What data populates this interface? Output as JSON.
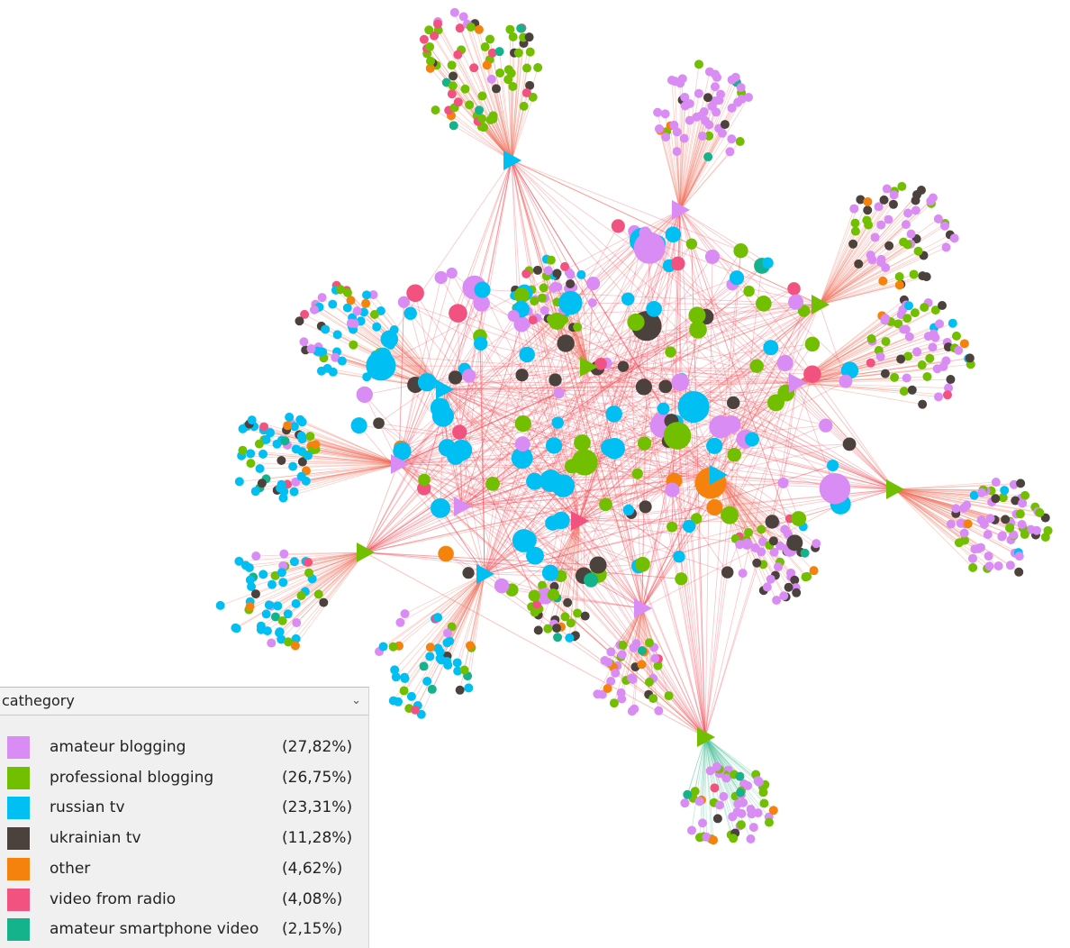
{
  "legend": {
    "title": "cathegory",
    "items": [
      {
        "label": "amateur blogging",
        "share": "(27,82%)",
        "color": "#d98cf3"
      },
      {
        "label": "professional blogging",
        "share": "(26,75%)",
        "color": "#72bf00"
      },
      {
        "label": "russian tv",
        "share": "(23,31%)",
        "color": "#00bff3"
      },
      {
        "label": "ukrainian tv",
        "share": "(11,28%)",
        "color": "#4b413d"
      },
      {
        "label": "other",
        "share": "(4,62%)",
        "color": "#f5820d"
      },
      {
        "label": "video from radio",
        "share": "(4,08%)",
        "color": "#f2527f"
      },
      {
        "label": "amateur smartphone video",
        "share": "(2,15%)",
        "color": "#14b38b"
      }
    ]
  }
}
